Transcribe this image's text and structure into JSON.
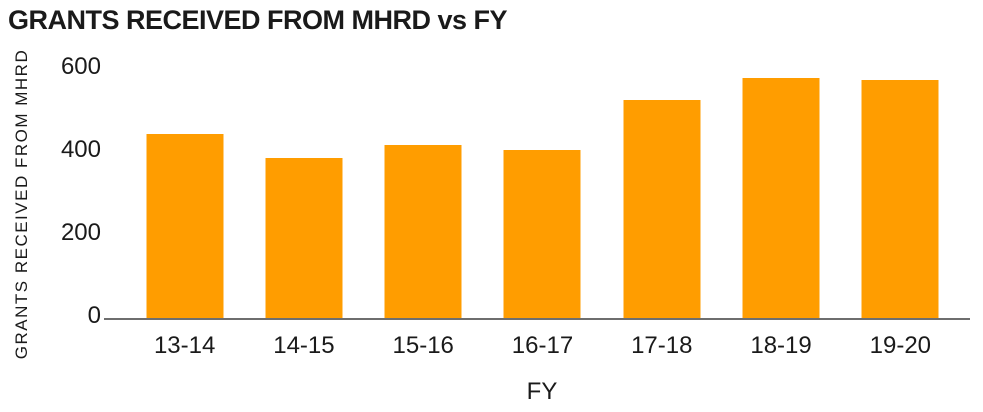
{
  "chart_data": {
    "type": "bar",
    "title": "GRANTS RECEIVED FROM MHRD vs FY",
    "categories": [
      "13-14",
      "14-15",
      "15-16",
      "16-17",
      "17-18",
      "18-19",
      "19-20"
    ],
    "values": [
      447,
      390,
      420,
      408,
      527,
      580,
      576
    ],
    "xlabel": "FY",
    "ylabel": "GRANTS RECEIVED FROM MHRD",
    "ylim": [
      0,
      600
    ],
    "yticks": [
      0,
      200,
      400,
      600
    ],
    "grid": false,
    "legend": "none",
    "bar_color": "#FF9D00",
    "axis_line_color": "#6E6E6E",
    "text_color": "#1A1A1A"
  }
}
